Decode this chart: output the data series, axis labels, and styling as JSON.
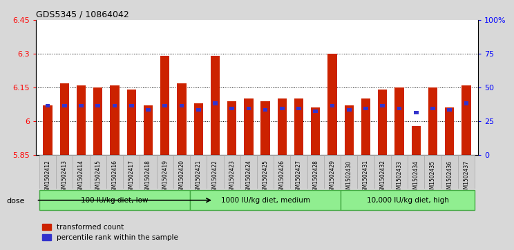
{
  "title": "GDS5345 / 10864042",
  "samples": [
    "GSM1502412",
    "GSM1502413",
    "GSM1502414",
    "GSM1502415",
    "GSM1502416",
    "GSM1502417",
    "GSM1502418",
    "GSM1502419",
    "GSM1502420",
    "GSM1502421",
    "GSM1502422",
    "GSM1502423",
    "GSM1502424",
    "GSM1502425",
    "GSM1502426",
    "GSM1502427",
    "GSM1502428",
    "GSM1502429",
    "GSM1502430",
    "GSM1502431",
    "GSM1502432",
    "GSM1502433",
    "GSM1502434",
    "GSM1502435",
    "GSM1502436",
    "GSM1502437"
  ],
  "red_values": [
    6.07,
    6.17,
    6.16,
    6.15,
    6.16,
    6.14,
    6.07,
    6.29,
    6.17,
    6.08,
    6.29,
    6.09,
    6.1,
    6.09,
    6.1,
    6.1,
    6.06,
    6.3,
    6.07,
    6.1,
    6.14,
    6.15,
    5.98,
    6.15,
    6.06,
    6.16
  ],
  "blue_pct_vals": [
    35,
    35,
    35,
    35,
    35,
    35,
    32,
    35,
    35,
    32,
    37,
    33,
    33,
    32,
    33,
    33,
    31,
    35,
    32,
    33,
    35,
    33,
    30,
    33,
    32,
    37
  ],
  "ymin": 5.85,
  "ymax": 6.45,
  "yticks": [
    5.85,
    6.0,
    6.15,
    6.3,
    6.45
  ],
  "ytick_labels": [
    "5.85",
    "6",
    "6.15",
    "6.3",
    "6.45"
  ],
  "right_yticks": [
    0,
    25,
    50,
    75,
    100
  ],
  "right_ytick_labels": [
    "0",
    "25",
    "50",
    "75",
    "100%"
  ],
  "grid_lines": [
    6.0,
    6.15,
    6.3
  ],
  "groups": [
    {
      "label": "100 IU/kg diet, low",
      "start": 0,
      "end": 9
    },
    {
      "label": "1000 IU/kg diet, medium",
      "start": 9,
      "end": 18
    },
    {
      "label": "10,000 IU/kg diet, high",
      "start": 18,
      "end": 26
    }
  ],
  "bar_color_red": "#CC2200",
  "bar_color_blue": "#3333CC",
  "background_color": "#D8D8D8",
  "plot_bg_color": "#FFFFFF",
  "xtick_bg_color": "#D0D0D0",
  "group_fill_color": "#90EE90",
  "group_edge_color": "#44AA44",
  "legend_red": "transformed count",
  "legend_blue": "percentile rank within the sample",
  "dose_label": "dose"
}
